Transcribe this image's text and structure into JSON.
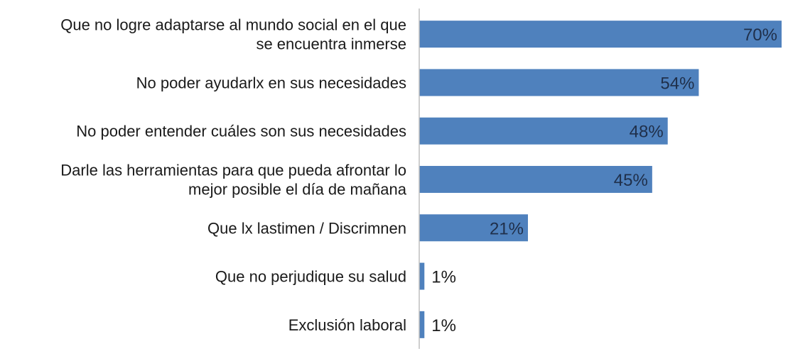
{
  "chart_data": {
    "type": "bar",
    "orientation": "horizontal",
    "categories": [
      "Que no logre adaptarse al mundo social en el que se encuentra inmerse",
      "No poder ayudarlx en sus necesidades",
      "No poder entender cuáles son sus necesidades",
      "Darle las herramientas para que pueda afrontar lo mejor posible el día de mañana",
      "Que lx lastimen / Discrimnen",
      "Que no perjudique su salud",
      "Exclusión laboral"
    ],
    "category_lines": [
      [
        "Que no logre adaptarse al mundo social en el que",
        "se encuentra inmerse"
      ],
      [
        "No poder ayudarlx en sus necesidades"
      ],
      [
        "No poder entender cuáles son sus necesidades"
      ],
      [
        "Darle las herramientas para que pueda afrontar lo",
        "mejor posible el día de mañana"
      ],
      [
        "Que lx lastimen / Discrimnen"
      ],
      [
        "Que no perjudique su salud"
      ],
      [
        "Exclusión laboral"
      ]
    ],
    "values": [
      70,
      54,
      48,
      45,
      21,
      1,
      1
    ],
    "value_labels": [
      "70%",
      "54%",
      "48%",
      "45%",
      "21%",
      "1%",
      "1%"
    ],
    "xlim": [
      0,
      70
    ],
    "bar_color": "#4f81bd",
    "grid": false,
    "legend": "none"
  }
}
